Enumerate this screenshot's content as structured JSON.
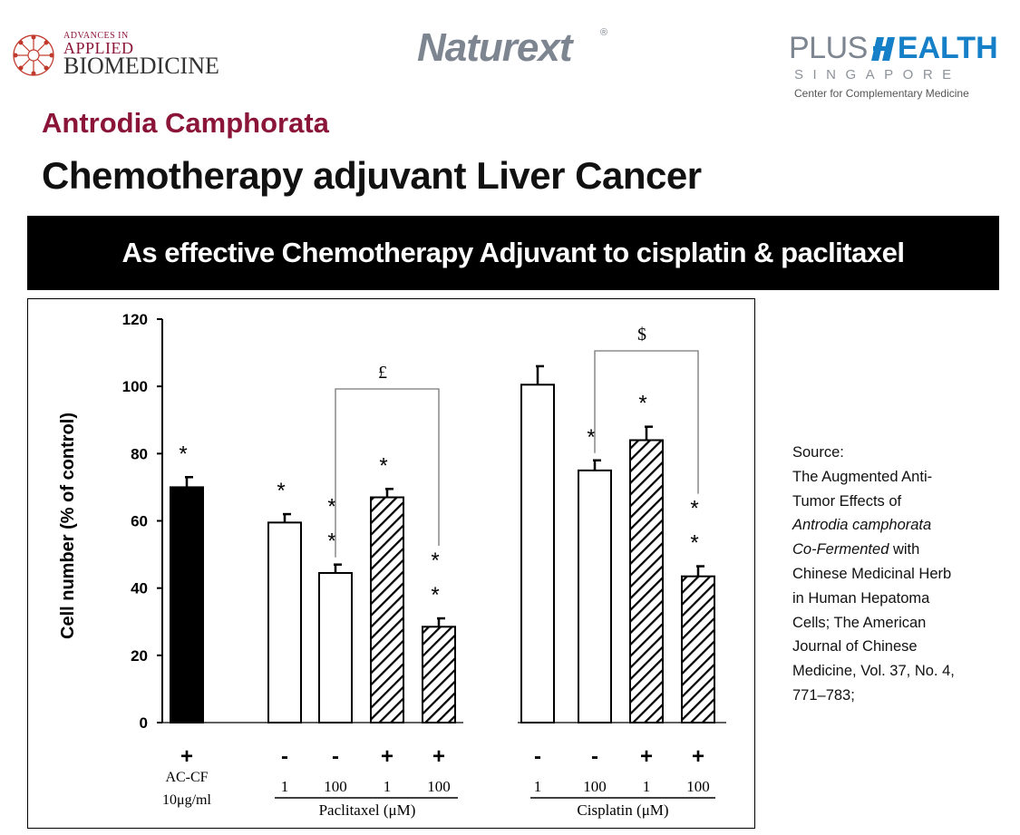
{
  "logos": {
    "aab": {
      "line1": "ADVANCES IN",
      "line2": "APPLIED",
      "line3": "BIOMEDICINE"
    },
    "naturext": {
      "word": "Naturext",
      "mark": "®"
    },
    "plushealth": {
      "plus": "PLUS",
      "health": "EALTH",
      "country": "SINGAPORE",
      "tagline": "Center for Complementary Medicine"
    }
  },
  "header": {
    "subtitle": "Antrodia Camphorata",
    "title": "Chemotherapy adjuvant Liver Cancer"
  },
  "banner": {
    "text": "As effective Chemotherapy Adjuvant to cisplatin & paclitaxel"
  },
  "source": {
    "label": "Source:",
    "line1": "The Augmented Anti-",
    "line2": "Tumor Effects of",
    "line3_italic": "Antrodia camphorata",
    "line4_italic": "Co-Fermented",
    "line4_rest": " with",
    "line5": "Chinese Medicinal Herb",
    "line6": "in Human Hepatoma",
    "line7": "Cells; The American",
    "line8": "Journal of Chinese",
    "line9": "Medicine, Vol. 37, No. 4,",
    "line10": "771–783;"
  },
  "colors": {
    "maroon": "#8b1538",
    "banner_bg": "#000000",
    "blue": "#1580c8"
  },
  "chart_data": {
    "type": "bar",
    "ylabel": "Cell number (% of control)",
    "ylim": [
      0,
      120
    ],
    "yticks": [
      0,
      20,
      40,
      60,
      80,
      100,
      120
    ],
    "bars": [
      {
        "group": "acf",
        "value": 70,
        "error": 3,
        "fill": "solid",
        "acf_sign": "+",
        "dose": "",
        "stars": [
          "*"
        ]
      },
      {
        "group": "pac",
        "value": 59.5,
        "error": 2.5,
        "fill": "open",
        "acf_sign": "-",
        "dose": "1",
        "stars": [
          "*"
        ]
      },
      {
        "group": "pac",
        "value": 44.5,
        "error": 2.5,
        "fill": "open",
        "acf_sign": "-",
        "dose": "100",
        "stars": [
          "*",
          "*"
        ]
      },
      {
        "group": "pac",
        "value": 67,
        "error": 2.5,
        "fill": "hatched",
        "acf_sign": "+",
        "dose": "1",
        "stars": [
          "*"
        ]
      },
      {
        "group": "pac",
        "value": 28.5,
        "error": 2.5,
        "fill": "hatched",
        "acf_sign": "+",
        "dose": "100",
        "stars": [
          "*",
          "*"
        ]
      },
      {
        "group": "cis",
        "value": 100.5,
        "error": 5.5,
        "fill": "open",
        "acf_sign": "-",
        "dose": "1",
        "stars": []
      },
      {
        "group": "cis",
        "value": 75,
        "error": 3,
        "fill": "open",
        "acf_sign": "-",
        "dose": "100",
        "stars": [
          "*"
        ]
      },
      {
        "group": "cis",
        "value": 84,
        "error": 4,
        "fill": "hatched",
        "acf_sign": "+",
        "dose": "1",
        "stars": [
          "*"
        ]
      },
      {
        "group": "cis",
        "value": 43.5,
        "error": 3,
        "fill": "hatched",
        "acf_sign": "+",
        "dose": "100",
        "stars": [
          "*",
          "*"
        ]
      }
    ],
    "brackets": [
      {
        "from_bar": 2,
        "to_bar": 4,
        "symbol": "£"
      },
      {
        "from_bar": 6,
        "to_bar": 8,
        "symbol": "$"
      }
    ],
    "acf_label_1": "AC-CF",
    "acf_label_2": "10μg/ml",
    "group_labels": {
      "pac": "Paclitaxel (μM)",
      "cis": "Cisplatin (μM)"
    }
  }
}
